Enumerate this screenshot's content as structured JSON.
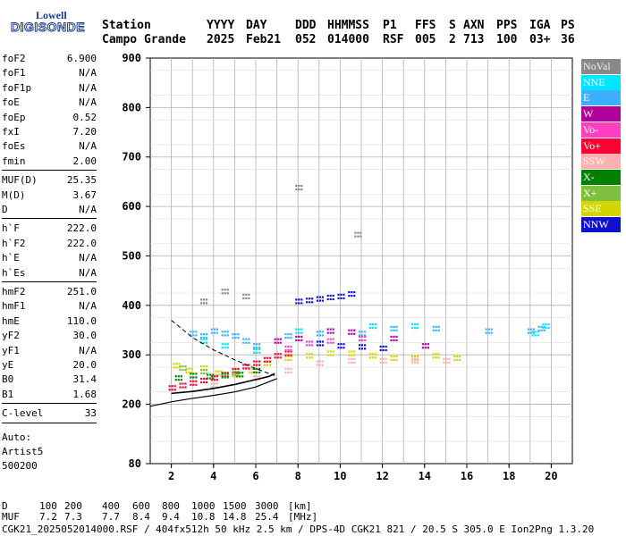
{
  "logo": {
    "line1": "Lowell",
    "line2": "DIGISONDE"
  },
  "header": {
    "labels": [
      "Station",
      "YYYY",
      "DAY",
      "DDD",
      "HHMMSS",
      "P1",
      "FFS",
      "S",
      "AXN",
      "PPS",
      "IGA",
      "PS"
    ],
    "values": [
      "Campo Grande",
      "2025",
      "Feb21",
      "052",
      "014000",
      "RSF",
      "005",
      "2",
      "713",
      "100",
      "03+",
      "36"
    ]
  },
  "params": {
    "group1": [
      {
        "label": "foF2",
        "value": "6.900"
      },
      {
        "label": "foF1",
        "value": "N/A"
      },
      {
        "label": "foF1p",
        "value": "N/A"
      },
      {
        "label": "foE",
        "value": "N/A"
      },
      {
        "label": "foEp",
        "value": "0.52"
      },
      {
        "label": "fxI",
        "value": "7.20"
      },
      {
        "label": "foEs",
        "value": "N/A"
      },
      {
        "label": "fmin",
        "value": "2.00"
      }
    ],
    "group2": [
      {
        "label": "MUF(D)",
        "value": "25.35"
      },
      {
        "label": "M(D)",
        "value": "3.67"
      },
      {
        "label": "D",
        "value": "N/A"
      }
    ],
    "group3": [
      {
        "label": "h`F",
        "value": "222.0"
      },
      {
        "label": "h`F2",
        "value": "222.0"
      },
      {
        "label": "h`E",
        "value": "N/A"
      },
      {
        "label": "h`Es",
        "value": "N/A"
      }
    ],
    "group4": [
      {
        "label": "hmF2",
        "value": "251.0"
      },
      {
        "label": "hmF1",
        "value": "N/A"
      },
      {
        "label": "hmE",
        "value": "110.0"
      },
      {
        "label": "yF2",
        "value": "30.0"
      },
      {
        "label": "yF1",
        "value": "N/A"
      },
      {
        "label": "yE",
        "value": "20.0"
      },
      {
        "label": "B0",
        "value": "31.4"
      },
      {
        "label": "B1",
        "value": "1.68"
      }
    ],
    "group5": [
      {
        "label": "C-level",
        "value": "33"
      }
    ],
    "auto": [
      "Auto:",
      "Artist5",
      "500200"
    ]
  },
  "legend": [
    {
      "label": "NoVal",
      "color": "#888888"
    },
    {
      "label": "NNE",
      "color": "#00e5ff"
    },
    {
      "label": "E",
      "color": "#3cb0ff"
    },
    {
      "label": "W",
      "color": "#b0009a"
    },
    {
      "label": "Vo-",
      "color": "#ff40c0"
    },
    {
      "label": "Vo+",
      "color": "#ff0033"
    },
    {
      "label": "SSW",
      "color": "#ffb0b0"
    },
    {
      "label": "X-",
      "color": "#008000"
    },
    {
      "label": "X+",
      "color": "#7fbf40"
    },
    {
      "label": "SSE",
      "color": "#d4d400"
    },
    {
      "label": "NNW",
      "color": "#1010d0"
    }
  ],
  "footer": {
    "d_label": "D",
    "d_values": [
      "100",
      "200",
      "400",
      "600",
      "800",
      "1000",
      "1500",
      "3000"
    ],
    "d_unit": "[km]",
    "muf_label": "MUF",
    "muf_values": [
      "7.2",
      "7.3",
      "7.7",
      "8.4",
      "9.4",
      "10.8",
      "14.8",
      "25.4"
    ],
    "muf_unit": "[MHz]",
    "info": "CGK21_2025052014000.RSF / 404fx512h 50 kHz 2.5 km / DPS-4D CGK21 821 / 20.5 S 305.0 E Ion2Png 1.3.20"
  },
  "chart_data": {
    "type": "scatter",
    "xlim": [
      1,
      21
    ],
    "ylim": [
      80,
      900
    ],
    "x_ticks": [
      2,
      4,
      6,
      8,
      10,
      12,
      14,
      16,
      18,
      20
    ],
    "y_ticks": [
      80,
      200,
      300,
      400,
      500,
      600,
      700,
      800,
      900
    ],
    "grid": true,
    "legend_position": "right",
    "series": [
      {
        "name": "SSE",
        "points": [
          [
            2.2,
            280
          ],
          [
            2.8,
            270
          ],
          [
            3.5,
            275
          ],
          [
            4.2,
            265
          ],
          [
            5.0,
            262
          ],
          [
            5.8,
            270
          ],
          [
            6.5,
            285
          ],
          [
            7.5,
            295
          ],
          [
            8.5,
            300
          ],
          [
            9.5,
            305
          ],
          [
            10.5,
            305
          ],
          [
            11.5,
            300
          ],
          [
            12.5,
            295
          ],
          [
            13.5,
            295
          ],
          [
            14.5,
            300
          ],
          [
            15.5,
            295
          ]
        ]
      },
      {
        "name": "E",
        "points": [
          [
            3.0,
            345
          ],
          [
            3.5,
            340
          ],
          [
            4.0,
            350
          ],
          [
            4.5,
            345
          ],
          [
            5.0,
            340
          ],
          [
            5.5,
            330
          ],
          [
            6.0,
            320
          ],
          [
            7.5,
            340
          ],
          [
            9.0,
            345
          ],
          [
            11.0,
            345
          ],
          [
            12.5,
            355
          ],
          [
            14.5,
            355
          ],
          [
            17.0,
            350
          ],
          [
            19.0,
            350
          ],
          [
            19.5,
            355
          ]
        ]
      },
      {
        "name": "NNE",
        "points": [
          [
            3.5,
            330
          ],
          [
            4.5,
            320
          ],
          [
            6.0,
            310
          ],
          [
            8.0,
            350
          ],
          [
            11.5,
            360
          ],
          [
            13.5,
            360
          ],
          [
            19.2,
            345
          ],
          [
            19.7,
            360
          ]
        ]
      },
      {
        "name": "NNW",
        "points": [
          [
            8.0,
            410
          ],
          [
            8.5,
            412
          ],
          [
            9.0,
            415
          ],
          [
            9.5,
            418
          ],
          [
            10.0,
            420
          ],
          [
            10.5,
            425
          ],
          [
            9.0,
            325
          ],
          [
            10.0,
            320
          ],
          [
            11.0,
            318
          ],
          [
            12.0,
            315
          ]
        ]
      },
      {
        "name": "W",
        "points": [
          [
            7.0,
            330
          ],
          [
            8.0,
            335
          ],
          [
            9.5,
            350
          ],
          [
            10.5,
            348
          ],
          [
            12.5,
            335
          ],
          [
            14.0,
            320
          ]
        ]
      },
      {
        "name": "Vo+",
        "points": [
          [
            2.0,
            235
          ],
          [
            2.5,
            240
          ],
          [
            3.0,
            245
          ],
          [
            3.5,
            250
          ],
          [
            4.0,
            255
          ],
          [
            4.5,
            262
          ],
          [
            5.0,
            270
          ],
          [
            5.5,
            278
          ],
          [
            6.0,
            285
          ],
          [
            6.5,
            292
          ],
          [
            7.0,
            300
          ],
          [
            7.5,
            305
          ]
        ]
      },
      {
        "name": "Vo-",
        "points": [
          [
            7.5,
            315
          ],
          [
            8.5,
            325
          ],
          [
            9.5,
            330
          ],
          [
            11.0,
            335
          ]
        ]
      },
      {
        "name": "SSW",
        "points": [
          [
            4.0,
            240
          ],
          [
            6.0,
            255
          ],
          [
            7.5,
            270
          ],
          [
            9.0,
            285
          ],
          [
            10.5,
            290
          ],
          [
            12.0,
            290
          ],
          [
            13.5,
            290
          ],
          [
            15.0,
            290
          ]
        ]
      },
      {
        "name": "X-",
        "points": [
          [
            2.3,
            255
          ],
          [
            3.0,
            260
          ],
          [
            3.8,
            258
          ],
          [
            4.5,
            260
          ],
          [
            5.2,
            262
          ],
          [
            6.0,
            270
          ]
        ]
      },
      {
        "name": "X+",
        "points": [
          [
            2.5,
            275
          ],
          [
            3.5,
            268
          ],
          [
            5.0,
            265
          ]
        ]
      },
      {
        "name": "NoVal",
        "points": [
          [
            3.5,
            410
          ],
          [
            4.5,
            430
          ],
          [
            5.5,
            420
          ],
          [
            8.0,
            640
          ],
          [
            10.8,
            545
          ]
        ]
      }
    ],
    "trace_profile": [
      [
        2.0,
        222
      ],
      [
        3.0,
        226
      ],
      [
        4.0,
        232
      ],
      [
        5.0,
        240
      ],
      [
        6.0,
        250
      ],
      [
        6.6,
        256
      ],
      [
        6.9,
        262
      ]
    ],
    "trace_dashed": [
      [
        2.0,
        370
      ],
      [
        3.0,
        335
      ],
      [
        4.0,
        310
      ],
      [
        5.0,
        290
      ],
      [
        6.0,
        272
      ],
      [
        6.9,
        258
      ]
    ],
    "trace_solid": [
      [
        1.0,
        196
      ],
      [
        2.0,
        205
      ],
      [
        3.0,
        212
      ],
      [
        4.0,
        218
      ],
      [
        5.0,
        225
      ],
      [
        6.0,
        235
      ],
      [
        7.0,
        252
      ]
    ]
  }
}
